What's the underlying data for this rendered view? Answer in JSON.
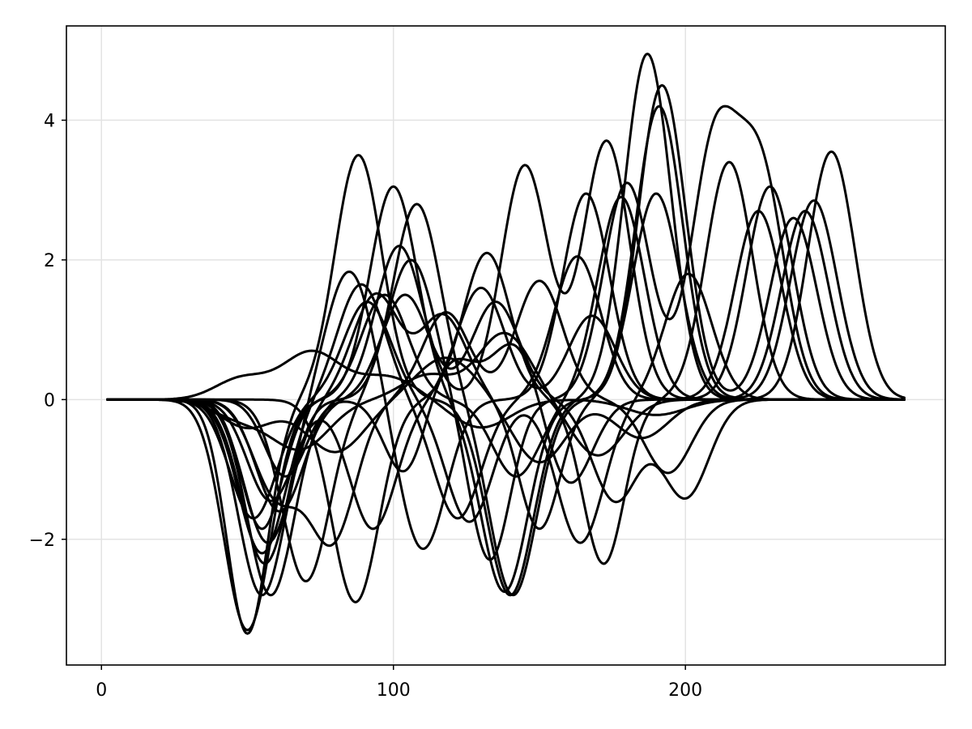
{
  "chart_data": {
    "type": "line",
    "title": "",
    "xlabel": "",
    "ylabel": "",
    "xlim": [
      -12,
      289
    ],
    "ylim": [
      -3.8,
      5.35
    ],
    "x_ticks": [
      0,
      100,
      200
    ],
    "y_ticks": [
      -2,
      0,
      2,
      4
    ],
    "x_tick_labels": [
      "0",
      "100",
      "200"
    ],
    "y_tick_labels": [
      "−2",
      "0",
      "2",
      "4"
    ],
    "grid": true,
    "legend": "none",
    "line_color": "#000000",
    "x_range": [
      2,
      275
    ],
    "series": [
      {
        "bumps": [
          [
            50,
            7,
            -3.35
          ],
          [
            88,
            8,
            3.5
          ],
          [
            140,
            8,
            -2.8
          ],
          [
            187,
            8,
            4.95
          ],
          [
            250,
            8,
            3.55
          ]
        ]
      },
      {
        "bumps": [
          [
            50,
            8,
            -3.3
          ],
          [
            100,
            8,
            3.05
          ],
          [
            138,
            8,
            -2.75
          ],
          [
            192,
            8,
            4.5
          ],
          [
            237,
            8,
            2.6
          ]
        ]
      },
      {
        "bumps": [
          [
            55,
            8,
            -2.8
          ],
          [
            108,
            8,
            2.8
          ],
          [
            141,
            8,
            -2.8
          ],
          [
            191,
            8,
            4.2
          ],
          [
            244,
            8,
            2.85
          ]
        ]
      },
      {
        "bumps": [
          [
            58,
            8,
            -2.8
          ],
          [
            102,
            8,
            2.2
          ],
          [
            145,
            8,
            3.35
          ],
          [
            173,
            8,
            3.7
          ],
          [
            229,
            8,
            3.05
          ]
        ]
      },
      {
        "bumps": [
          [
            70,
            8,
            -2.6
          ],
          [
            106,
            8,
            2.0
          ],
          [
            133,
            7,
            -2.3
          ],
          [
            180,
            8,
            3.1
          ],
          [
            210,
            8,
            3.6
          ],
          [
            226,
            8,
            3.15
          ]
        ]
      },
      {
        "bumps": [
          [
            87,
            8,
            -2.9
          ],
          [
            132,
            8,
            2.1
          ],
          [
            172,
            7,
            -2.35
          ],
          [
            215,
            8,
            3.4
          ]
        ]
      },
      {
        "bumps": [
          [
            56,
            8,
            -2.35
          ],
          [
            85,
            8,
            1.85
          ],
          [
            110,
            8,
            -2.15
          ],
          [
            166,
            8,
            2.95
          ],
          [
            225,
            8,
            2.7
          ]
        ]
      },
      {
        "bumps": [
          [
            55,
            8,
            -2.2
          ],
          [
            89,
            8,
            1.65
          ],
          [
            122,
            8,
            -1.7
          ],
          [
            163,
            8,
            2.05
          ],
          [
            241,
            8,
            2.7
          ]
        ]
      },
      {
        "bumps": [
          [
            57,
            8,
            -2.05
          ],
          [
            94,
            8,
            1.5
          ],
          [
            117,
            8,
            1.2
          ],
          [
            150,
            7,
            -1.85
          ],
          [
            190,
            8,
            2.95
          ]
        ]
      },
      {
        "bumps": [
          [
            55,
            7,
            -1.85
          ],
          [
            97,
            8,
            1.5
          ],
          [
            142,
            8,
            -1.1
          ],
          [
            178,
            8,
            2.9
          ]
        ]
      },
      {
        "bumps": [
          [
            52,
            8,
            -1.7
          ],
          [
            91,
            8,
            1.4
          ],
          [
            126,
            8,
            -1.75
          ],
          [
            164,
            8,
            -2.05
          ],
          [
            201,
            8,
            1.8
          ]
        ]
      },
      {
        "bumps": [
          [
            61,
            8,
            -1.6
          ],
          [
            104,
            8,
            1.5
          ],
          [
            135,
            8,
            1.4
          ],
          [
            176,
            8,
            -1.45
          ],
          [
            200,
            8,
            -1.4
          ]
        ]
      },
      {
        "bumps": [
          [
            58,
            8,
            -1.45
          ],
          [
            93,
            8,
            -1.85
          ],
          [
            130,
            8,
            1.6
          ],
          [
            168,
            8,
            1.2
          ]
        ]
      },
      {
        "bumps": [
          [
            60,
            8,
            -1.35
          ],
          [
            79,
            8,
            -2.0
          ],
          [
            118,
            8,
            1.25
          ],
          [
            150,
            8,
            1.7
          ],
          [
            194,
            8,
            -1.05
          ]
        ]
      },
      {
        "bumps": [
          [
            63,
            7,
            -1.1
          ],
          [
            104,
            7,
            -1.1
          ],
          [
            120,
            8,
            0.6
          ],
          [
            142,
            8,
            0.85
          ],
          [
            160,
            8,
            -1.25
          ]
        ]
      },
      {
        "bumps": [
          [
            48,
            9,
            0.3
          ],
          [
            72,
            10,
            0.68
          ],
          [
            98,
            10,
            0.32
          ],
          [
            130,
            10,
            -0.4
          ],
          [
            190,
            10,
            -0.22
          ]
        ]
      },
      {
        "bumps": [
          [
            50,
            9,
            -0.4
          ],
          [
            80,
            10,
            -0.75
          ],
          [
            118,
            10,
            0.6
          ],
          [
            150,
            9,
            -0.9
          ],
          [
            185,
            9,
            -0.55
          ]
        ]
      },
      {
        "bumps": [
          [
            47,
            9,
            -0.25
          ],
          [
            68,
            10,
            -0.7
          ],
          [
            112,
            9,
            0.35
          ],
          [
            138,
            9,
            0.95
          ],
          [
            170,
            9,
            -0.8
          ]
        ]
      }
    ]
  }
}
